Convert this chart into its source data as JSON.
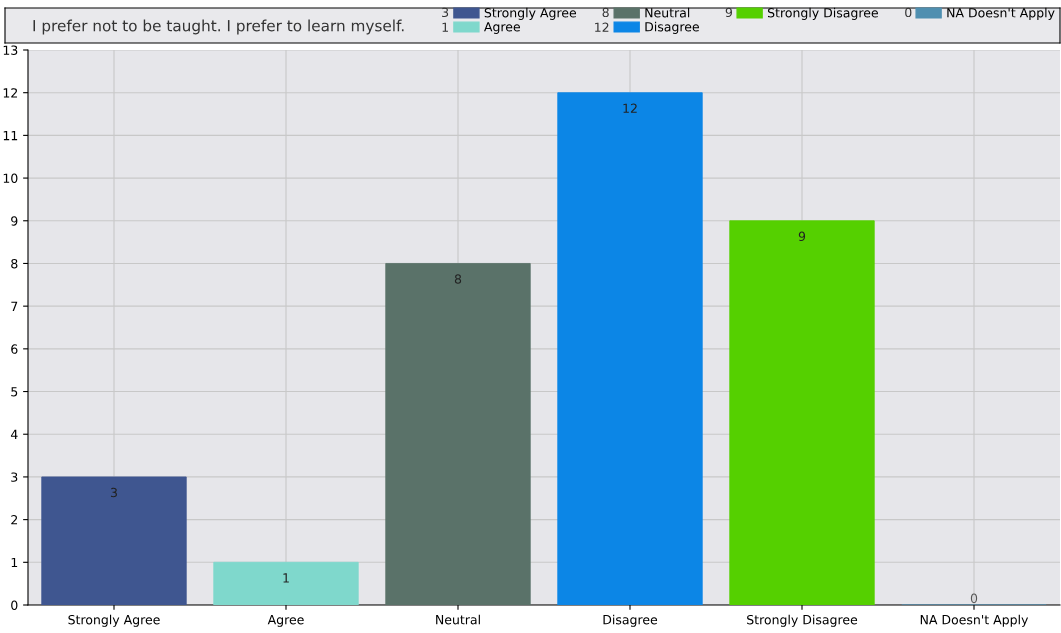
{
  "chart_data": {
    "type": "bar",
    "title": "I prefer not to be taught. I prefer to learn myself.",
    "categories": [
      "Strongly Agree",
      "Agree",
      "Neutral",
      "Disagree",
      "Strongly Disagree",
      "NA Doesn't Apply"
    ],
    "series": [
      {
        "name": "Strongly Agree",
        "color": "#3f5690",
        "values": [
          3,
          null,
          null,
          null,
          null,
          null
        ],
        "value_labels": [
          "3",
          null,
          null,
          null,
          null,
          null
        ]
      },
      {
        "name": "Agree",
        "color": "#7fd8cc",
        "values": [
          null,
          1,
          null,
          null,
          null,
          null
        ],
        "value_labels": [
          null,
          "1",
          null,
          null,
          null,
          null
        ]
      },
      {
        "name": "Neutral",
        "color": "#5a7269",
        "values": [
          null,
          null,
          8,
          null,
          null,
          null
        ],
        "value_labels": [
          null,
          null,
          "8",
          null,
          null,
          null
        ]
      },
      {
        "name": "Disagree",
        "color": "#0c86e6",
        "values": [
          null,
          null,
          null,
          12,
          null,
          null
        ],
        "value_labels": [
          null,
          null,
          null,
          "12",
          null,
          null
        ]
      },
      {
        "name": "Strongly Disagree",
        "color": "#55d000",
        "values": [
          null,
          null,
          null,
          null,
          9,
          null
        ],
        "value_labels": [
          null,
          null,
          null,
          null,
          "9",
          null
        ]
      },
      {
        "name": "NA Doesn't Apply",
        "color": "#4f8fb0",
        "values": [
          null,
          null,
          null,
          null,
          null,
          0
        ],
        "value_labels": [
          null,
          null,
          null,
          null,
          null,
          "0"
        ]
      }
    ],
    "ylim": [
      0,
      13
    ],
    "yticks": [
      0,
      1,
      2,
      3,
      4,
      5,
      6,
      7,
      8,
      9,
      10,
      11,
      12,
      13
    ],
    "grid": true,
    "legend": "top right"
  }
}
